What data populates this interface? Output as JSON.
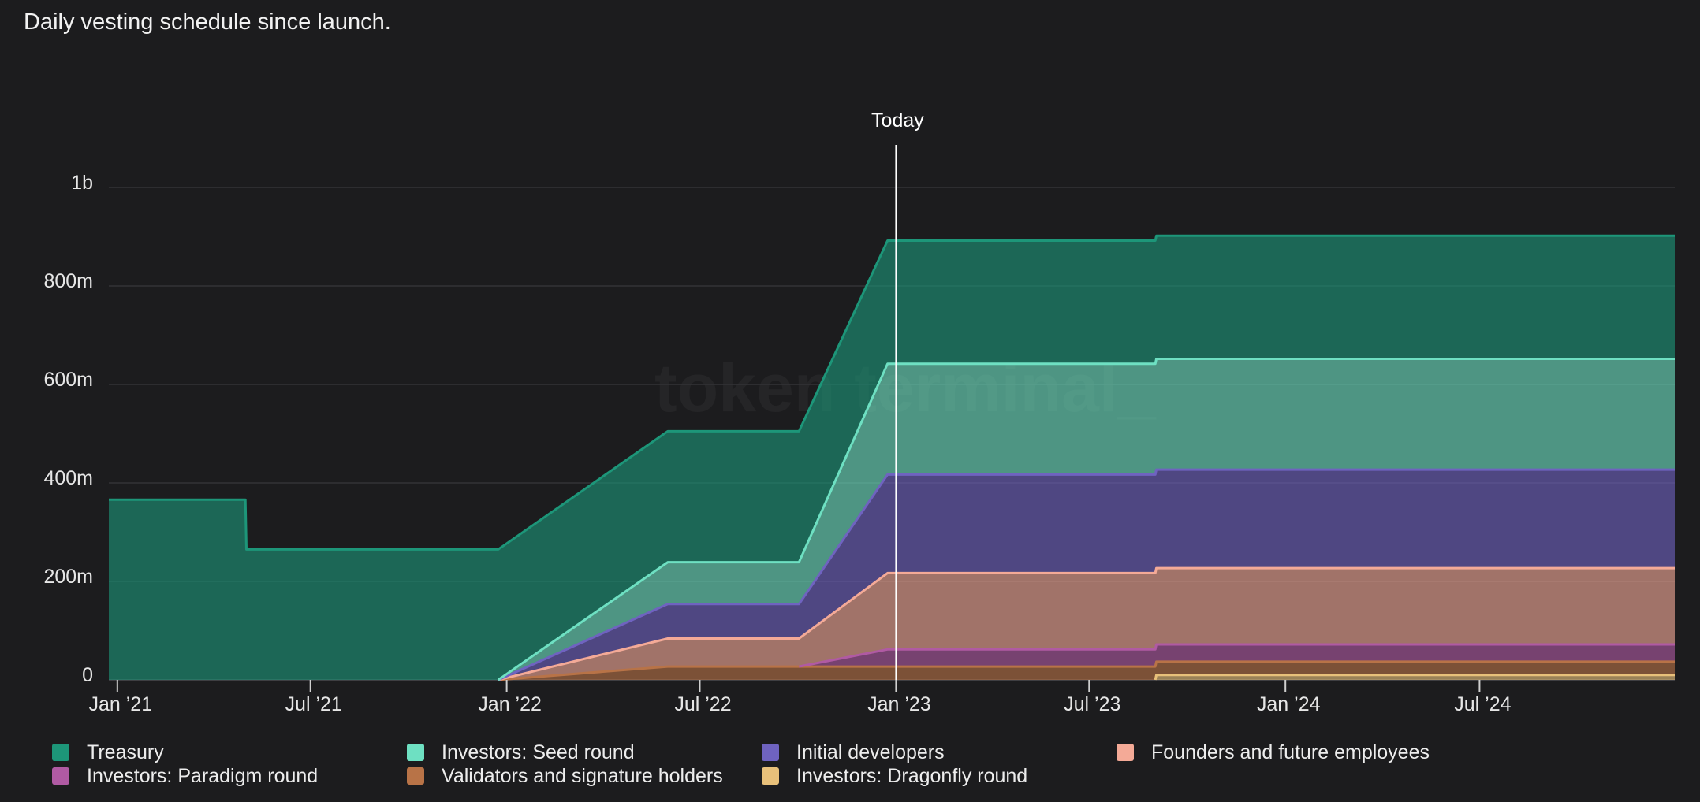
{
  "subtitle": "Daily vesting schedule since launch.",
  "watermark": "token terminal_",
  "chart_data": {
    "type": "area",
    "stacked": true,
    "title": "Daily vesting schedule since launch.",
    "xlabel": "",
    "ylabel": "",
    "ylim": [
      0,
      1000
    ],
    "y_unit": "m",
    "y_ticks": [
      {
        "value": 0,
        "label": "0"
      },
      {
        "value": 200,
        "label": "200m"
      },
      {
        "value": 400,
        "label": "400m"
      },
      {
        "value": 600,
        "label": "600m"
      },
      {
        "value": 800,
        "label": "800m"
      },
      {
        "value": 1000,
        "label": "1b"
      }
    ],
    "x_range": [
      "2020-12-24",
      "2024-12-31"
    ],
    "x_ticks": [
      {
        "date": "2021-01-01",
        "label": "Jan ’21"
      },
      {
        "date": "2021-07-01",
        "label": "Jul ’21"
      },
      {
        "date": "2022-01-01",
        "label": "Jan ’22"
      },
      {
        "date": "2022-07-01",
        "label": "Jul ’22"
      },
      {
        "date": "2023-01-01",
        "label": "Jan ’23"
      },
      {
        "date": "2023-07-01",
        "label": "Jul ’23"
      },
      {
        "date": "2024-01-01",
        "label": "Jan ’24"
      },
      {
        "date": "2024-07-01",
        "label": "Jul ’24"
      }
    ],
    "today": {
      "date": "2023-01-01",
      "label": "Today"
    },
    "grid": true,
    "legend_position": "bottom",
    "dates": [
      "2020-12-24",
      "2021-05-01",
      "2021-05-02",
      "2021-12-01",
      "2021-12-24",
      "2022-06-01",
      "2022-10-01",
      "2022-10-02",
      "2022-12-24",
      "2023-05-01",
      "2023-09-01",
      "2023-09-02",
      "2024-12-31"
    ],
    "series": [
      {
        "name": "Investors: Dragonfly round",
        "color": "#e8c07a",
        "values": [
          0,
          0,
          0,
          0,
          0,
          0,
          0,
          0,
          0,
          0,
          0,
          10,
          10
        ]
      },
      {
        "name": "Validators and signature holders",
        "color": "#b87347",
        "values": [
          0,
          0,
          0,
          0,
          0,
          27,
          27,
          27,
          27,
          27,
          27,
          27,
          27
        ]
      },
      {
        "name": "Investors: Paradigm round",
        "color": "#b05aa3",
        "values": [
          0,
          0,
          0,
          0,
          0,
          0,
          0,
          0,
          35,
          35,
          35,
          35,
          35
        ]
      },
      {
        "name": "Founders and future employees",
        "color": "#f4aa97",
        "values": [
          0,
          0,
          0,
          0,
          0,
          57,
          57,
          57,
          155,
          155,
          155,
          155,
          155
        ]
      },
      {
        "name": "Initial developers",
        "color": "#6f63c0",
        "values": [
          0,
          0,
          0,
          0,
          0,
          70,
          70,
          70,
          200,
          200,
          200,
          200,
          200
        ]
      },
      {
        "name": "Investors: Seed round",
        "color": "#6ee0c2",
        "values": [
          0,
          0,
          0,
          0,
          0,
          85,
          85,
          85,
          225,
          225,
          225,
          225,
          225
        ]
      },
      {
        "name": "Treasury",
        "color": "#1d9679",
        "values": [
          366,
          366,
          265,
          265,
          265,
          266,
          266,
          266,
          250,
          250,
          250,
          250,
          250
        ]
      }
    ],
    "legend_order": [
      "Treasury",
      "Investors: Seed round",
      "Initial developers",
      "Founders and future employees",
      "Investors: Paradigm round",
      "Validators and signature holders",
      "Investors: Dragonfly round"
    ]
  }
}
